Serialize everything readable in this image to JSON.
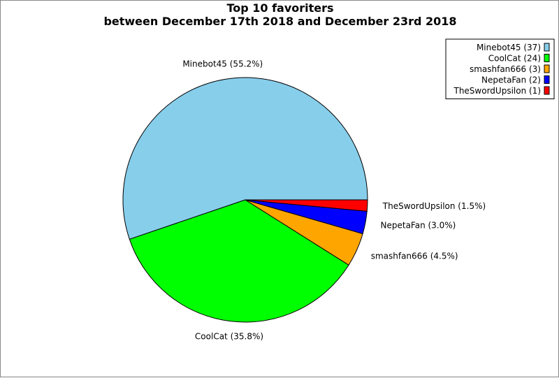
{
  "chart_data": {
    "type": "pie",
    "title": "Top 10 favoriters",
    "subtitle": "between December 17th 2018 and December 23rd 2018",
    "legend_position": "top-right",
    "slices": [
      {
        "name": "Minebot45",
        "value": 37,
        "percent_label": "Minebot45 (55.2%)",
        "legend_label": "Minebot45 (37)",
        "color": "#87CEEB"
      },
      {
        "name": "CoolCat",
        "value": 24,
        "percent_label": "CoolCat (35.8%)",
        "legend_label": "CoolCat (24)",
        "color": "#00FF00"
      },
      {
        "name": "smashfan666",
        "value": 3,
        "percent_label": "smashfan666 (4.5%)",
        "legend_label": "smashfan666 (3)",
        "color": "#FFA500"
      },
      {
        "name": "NepetaFan",
        "value": 2,
        "percent_label": "NepetaFan (3.0%)",
        "legend_label": "NepetaFan (2)",
        "color": "#0000FF"
      },
      {
        "name": "TheSwordUpsilon",
        "value": 1,
        "percent_label": "TheSwordUpsilon (1.5%)",
        "legend_label": "TheSwordUpsilon (1)",
        "color": "#FF0000"
      }
    ]
  }
}
